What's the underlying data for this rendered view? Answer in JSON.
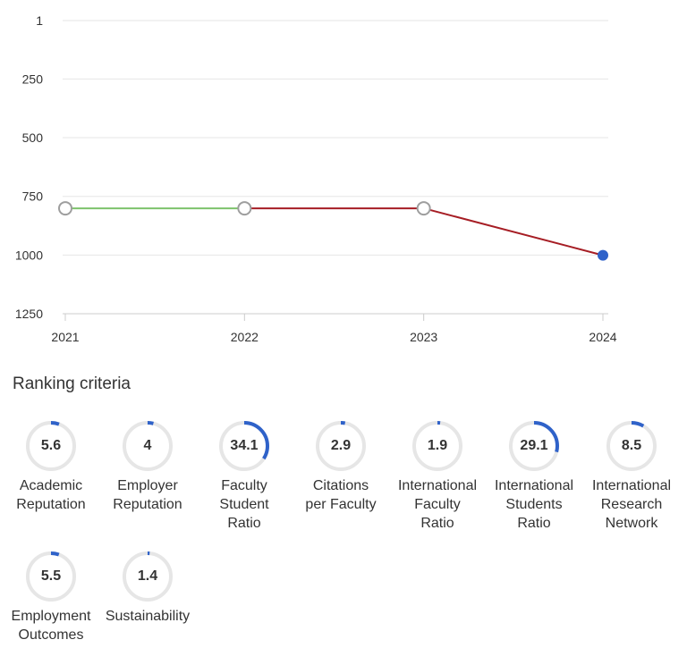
{
  "chart_data": {
    "type": "line",
    "x": [
      "2021",
      "2022",
      "2023",
      "2024"
    ],
    "y_ticks": [
      "1",
      "250",
      "500",
      "750",
      "1000",
      "1250"
    ],
    "ylim": [
      1,
      1250
    ],
    "y_inverted": true,
    "series": [
      {
        "values": [
          801,
          801,
          801,
          1001
        ]
      }
    ],
    "colors": {
      "up_segment": "#7dc36b",
      "down_segment": "#a61d24",
      "marker_fill": "#ffffff",
      "marker_stroke": "#9e9e9e",
      "last_marker": "#2f62c9"
    }
  },
  "criteria": {
    "title": "Ranking criteria",
    "ring_color": "#2f62c9",
    "track_color": "#e6e6e6",
    "items": [
      {
        "value": "5.6",
        "label": "Academic\nReputation"
      },
      {
        "value": "4",
        "label": "Employer\nReputation"
      },
      {
        "value": "34.1",
        "label": "Faculty\nStudent\nRatio"
      },
      {
        "value": "2.9",
        "label": "Citations\nper Faculty"
      },
      {
        "value": "1.9",
        "label": "International\nFaculty\nRatio"
      },
      {
        "value": "29.1",
        "label": "International\nStudents\nRatio"
      },
      {
        "value": "8.5",
        "label": "International\nResearch\nNetwork"
      },
      {
        "value": "5.5",
        "label": "Employment\nOutcomes"
      },
      {
        "value": "1.4",
        "label": "Sustainability"
      }
    ]
  }
}
